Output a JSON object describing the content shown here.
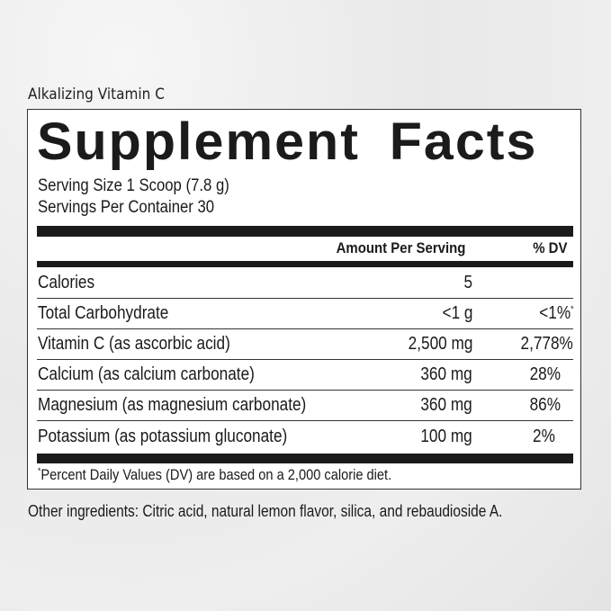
{
  "product_name": "Alkalizing Vitamin C",
  "title": "Supplement Facts",
  "serving_size": "Serving Size 1 Scoop (7.8 g)",
  "servings_per_container": "Servings Per Container 30",
  "header": {
    "amount": "Amount Per Serving",
    "dv": "% DV"
  },
  "rows": [
    {
      "label": "Calories",
      "amount": "5",
      "dv": ""
    },
    {
      "label": "Total Carbohydrate",
      "amount": "<1 g",
      "dv": "<1%",
      "dv_mark": "*"
    },
    {
      "label": "Vitamin C (as ascorbic acid)",
      "amount": "2,500 mg",
      "dv": "2,778%"
    },
    {
      "label": "Calcium (as calcium carbonate)",
      "amount": "360 mg",
      "dv": "28%"
    },
    {
      "label": "Magnesium (as magnesium carbonate)",
      "amount": "360 mg",
      "dv": "86%"
    },
    {
      "label": "Potassium (as potassium gluconate)",
      "amount": "100 mg",
      "dv": "2%"
    }
  ],
  "footnote_mark": "*",
  "footnote": "Percent Daily Values (DV) are based on a 2,000 calorie diet.",
  "other_ingredients": "Other ingredients: Citric acid, natural lemon flavor, silica, and rebaudioside A."
}
